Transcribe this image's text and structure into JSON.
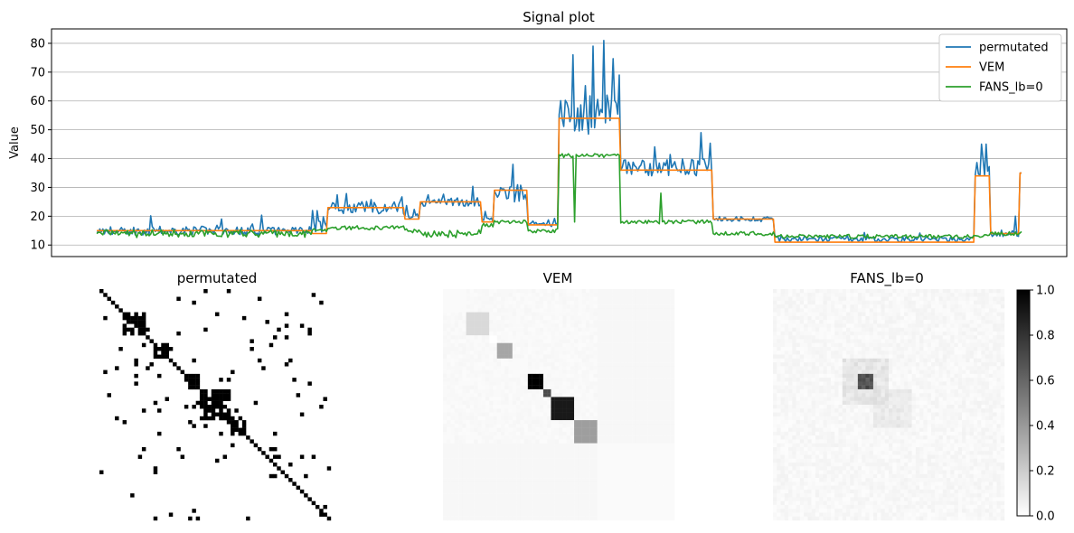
{
  "chart_data": [
    {
      "type": "line",
      "title": "Signal plot",
      "xlabel": "",
      "ylabel": "Value",
      "ylim": [
        6,
        85
      ],
      "yticks": [
        10,
        20,
        30,
        40,
        50,
        60,
        70,
        80
      ],
      "grid": "horizontal",
      "legend_position": "top-right",
      "x_index_range": [
        0,
        600
      ],
      "segments": [
        {
          "start": 0,
          "end": 140,
          "vem": 15,
          "fans": 14,
          "perm_base": 15,
          "perm_noise": 2.5
        },
        {
          "start": 140,
          "end": 150,
          "vem": 14,
          "fans": 15,
          "perm_base": 16,
          "perm_noise": 4
        },
        {
          "start": 150,
          "end": 200,
          "vem": 23,
          "fans": 16,
          "perm_base": 23,
          "perm_noise": 3.5
        },
        {
          "start": 200,
          "end": 210,
          "vem": 19,
          "fans": 15,
          "perm_base": 20,
          "perm_noise": 2
        },
        {
          "start": 210,
          "end": 250,
          "vem": 25,
          "fans": 14,
          "perm_base": 25,
          "perm_noise": 2.5
        },
        {
          "start": 250,
          "end": 258,
          "vem": 18,
          "fans": 17,
          "perm_base": 19,
          "perm_noise": 2
        },
        {
          "start": 258,
          "end": 280,
          "vem": 29,
          "fans": 18,
          "perm_base": 28,
          "perm_noise": 5
        },
        {
          "start": 280,
          "end": 300,
          "vem": 17,
          "fans": 15,
          "perm_base": 17,
          "perm_noise": 1.5
        },
        {
          "start": 300,
          "end": 340,
          "vem": 54,
          "fans": 41,
          "perm_base": 55,
          "perm_noise": 12
        },
        {
          "start": 340,
          "end": 400,
          "vem": 36,
          "fans": 18,
          "perm_base": 37,
          "perm_noise": 5
        },
        {
          "start": 400,
          "end": 440,
          "vem": 19,
          "fans": 14,
          "perm_base": 19,
          "perm_noise": 1.5
        },
        {
          "start": 440,
          "end": 570,
          "vem": 11,
          "fans": 13,
          "perm_base": 12,
          "perm_noise": 1.5
        },
        {
          "start": 570,
          "end": 580,
          "vem": 34,
          "fans": 13,
          "perm_base": 36,
          "perm_noise": 7
        },
        {
          "start": 580,
          "end": 599,
          "vem": 14,
          "fans": 14,
          "perm_base": 14,
          "perm_noise": 2
        },
        {
          "start": 599,
          "end": 600,
          "vem": 35,
          "fans": 14,
          "perm_base": 35,
          "perm_noise": 0
        }
      ],
      "series": [
        {
          "name": "permutated",
          "color": "#1f77b4"
        },
        {
          "name": "VEM",
          "color": "#ff7f0e"
        },
        {
          "name": "FANS_lb=0",
          "color": "#2ca02c"
        }
      ]
    },
    {
      "type": "heatmap",
      "panels": [
        {
          "title": "permutated",
          "style": "sparse-binary"
        },
        {
          "title": "VEM",
          "style": "block"
        },
        {
          "title": "FANS_lb=0",
          "style": "faint"
        }
      ],
      "colormap": "gray_r",
      "colorbar": {
        "min": 0.0,
        "max": 1.0,
        "ticks": [
          "0.0",
          "0.2",
          "0.4",
          "0.6",
          "0.8",
          "1.0"
        ]
      }
    }
  ]
}
